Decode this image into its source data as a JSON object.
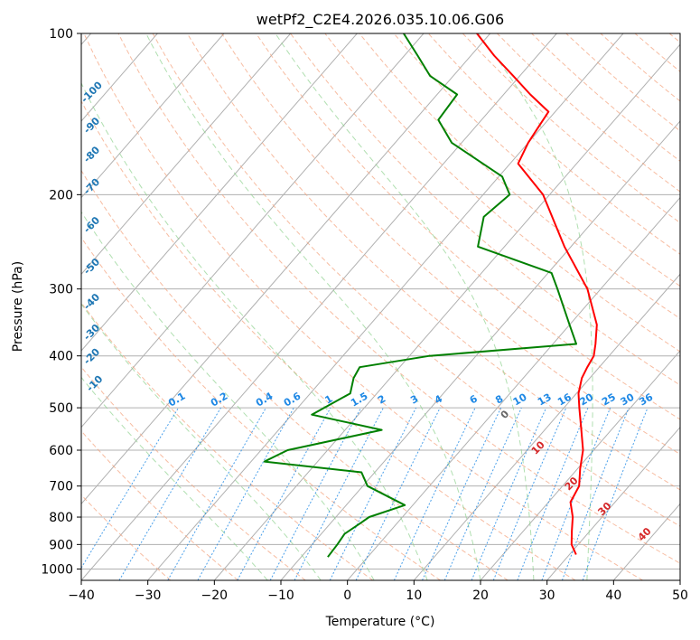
{
  "chart_data": {
    "type": "line",
    "title": "wetPf2_C2E4.2026.035.10.06.G06",
    "xlabel": "Temperature (°C)",
    "ylabel": "Pressure (hPa)",
    "xlim": [
      -40,
      50
    ],
    "ylim": [
      1050,
      100
    ],
    "y_scale": "log",
    "skew": true,
    "x_ticks": [
      "−40",
      "−30",
      "−20",
      "−10",
      "0",
      "10",
      "20",
      "30",
      "40",
      "50"
    ],
    "x_tick_values": [
      -40,
      -30,
      -20,
      -10,
      0,
      10,
      20,
      30,
      40,
      50
    ],
    "y_ticks": [
      "100",
      "200",
      "300",
      "400",
      "500",
      "600",
      "700",
      "800",
      "900",
      "1000"
    ],
    "y_tick_values": [
      100,
      200,
      300,
      400,
      500,
      600,
      700,
      800,
      900,
      1000
    ],
    "grid": true,
    "series": [
      {
        "name": "",
        "color": "#ff0000",
        "points": [
          [
            940,
            31.0
          ],
          [
            900,
            29.0
          ],
          [
            850,
            27.3
          ],
          [
            800,
            25.6
          ],
          [
            750,
            23.3
          ],
          [
            700,
            22.5
          ],
          [
            650,
            20.4
          ],
          [
            600,
            18.4
          ],
          [
            550,
            15.5
          ],
          [
            500,
            12.3
          ],
          [
            470,
            10.3
          ],
          [
            440,
            8.8
          ],
          [
            420,
            8.2
          ],
          [
            400,
            7.7
          ],
          [
            380,
            6.4
          ],
          [
            350,
            4.1
          ],
          [
            300,
            -2.0
          ],
          [
            250,
            -11.0
          ],
          [
            200,
            -21.0
          ],
          [
            175,
            -28.8
          ],
          [
            160,
            -30.0
          ],
          [
            150,
            -30.5
          ],
          [
            140,
            -31.0
          ],
          [
            130,
            -36.0
          ],
          [
            120,
            -41.0
          ],
          [
            110,
            -46.5
          ],
          [
            100,
            -52.0
          ]
        ]
      },
      {
        "name": "",
        "color": "#008000",
        "points": [
          [
            950,
            -6.0
          ],
          [
            900,
            -6.2
          ],
          [
            860,
            -6.5
          ],
          [
            820,
            -5.5
          ],
          [
            800,
            -5.0
          ],
          [
            760,
            -1.2
          ],
          [
            700,
            -9.3
          ],
          [
            660,
            -12.0
          ],
          [
            630,
            -28.0
          ],
          [
            600,
            -26.0
          ],
          [
            550,
            -14.5
          ],
          [
            515,
            -27.0
          ],
          [
            470,
            -24.0
          ],
          [
            440,
            -25.5
          ],
          [
            420,
            -26.0
          ],
          [
            400,
            -17.0
          ],
          [
            380,
            3.5
          ],
          [
            350,
            0.0
          ],
          [
            300,
            -6.5
          ],
          [
            280,
            -9.5
          ],
          [
            250,
            -24.0
          ],
          [
            220,
            -27.0
          ],
          [
            200,
            -26.0
          ],
          [
            185,
            -29.5
          ],
          [
            160,
            -41.5
          ],
          [
            145,
            -46.5
          ],
          [
            130,
            -47.0
          ],
          [
            120,
            -53.5
          ],
          [
            110,
            -58.0
          ],
          [
            100,
            -63.0
          ]
        ]
      }
    ],
    "dry_adiabat_labels": [
      "-100",
      "-90",
      "-80",
      "-70",
      "-60",
      "-50",
      "-40",
      "-30",
      "-20",
      "-10"
    ],
    "mixing_ratio_labels": [
      "0.1",
      "0.2",
      "0.4",
      "0.6",
      "1",
      "1.5",
      "2",
      "3",
      "4",
      "6",
      "8",
      "10",
      "13",
      "16",
      "20",
      "25",
      "30",
      "36"
    ],
    "moist_adiabat_labels": [
      "0",
      "10",
      "20",
      "30",
      "40"
    ]
  }
}
